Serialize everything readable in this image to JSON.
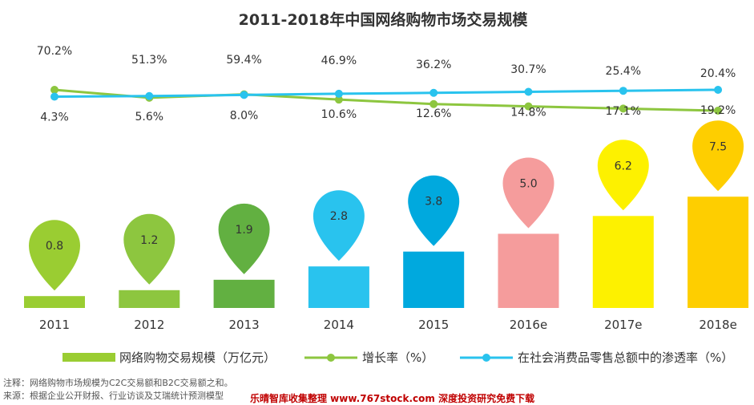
{
  "chart_data": {
    "type": "bar",
    "title": "2011-2018年中国网络购物市场交易规模",
    "categories": [
      "2011",
      "2012",
      "2013",
      "2014",
      "2015",
      "2016e",
      "2017e",
      "2018e"
    ],
    "series": [
      {
        "name": "网络购物交易规模（万亿元）",
        "type": "bar",
        "values": [
          0.8,
          1.2,
          1.9,
          2.8,
          3.8,
          5.0,
          6.2,
          7.5
        ],
        "colors": [
          "#9acd32",
          "#8dc63f",
          "#62b041",
          "#29c3ee",
          "#00a9de",
          "#f59c9c",
          "#fdf100",
          "#fece00"
        ]
      },
      {
        "name": "增长率（%）",
        "type": "line",
        "values": [
          70.2,
          51.3,
          59.4,
          46.9,
          36.2,
          30.7,
          25.4,
          20.4
        ],
        "labels": [
          "70.2%",
          "51.3%",
          "59.4%",
          "46.9%",
          "36.2%",
          "30.7%",
          "25.4%",
          "20.4%"
        ],
        "color": "#8dc63f"
      },
      {
        "name": "在社会消费品零售总额中的渗透率（%）",
        "type": "line",
        "values": [
          4.3,
          5.6,
          8.0,
          10.6,
          12.6,
          14.8,
          17.1,
          19.2
        ],
        "labels": [
          "4.3%",
          "5.6%",
          "8.0%",
          "10.6%",
          "12.6%",
          "14.8%",
          "17.1%",
          "19.2%"
        ],
        "color": "#29c3ee"
      }
    ],
    "legend_position": "bottom",
    "grid": false
  },
  "footnotes": {
    "note": "注释：网络购物市场规模为C2C交易额和B2C交易额之和。",
    "source": "来源：根据企业公开财报、行业访谈及艾瑞统计预测模型",
    "watermark": "乐晴智库收集整理 www.767stock.com 深度投资研究免费下载"
  }
}
